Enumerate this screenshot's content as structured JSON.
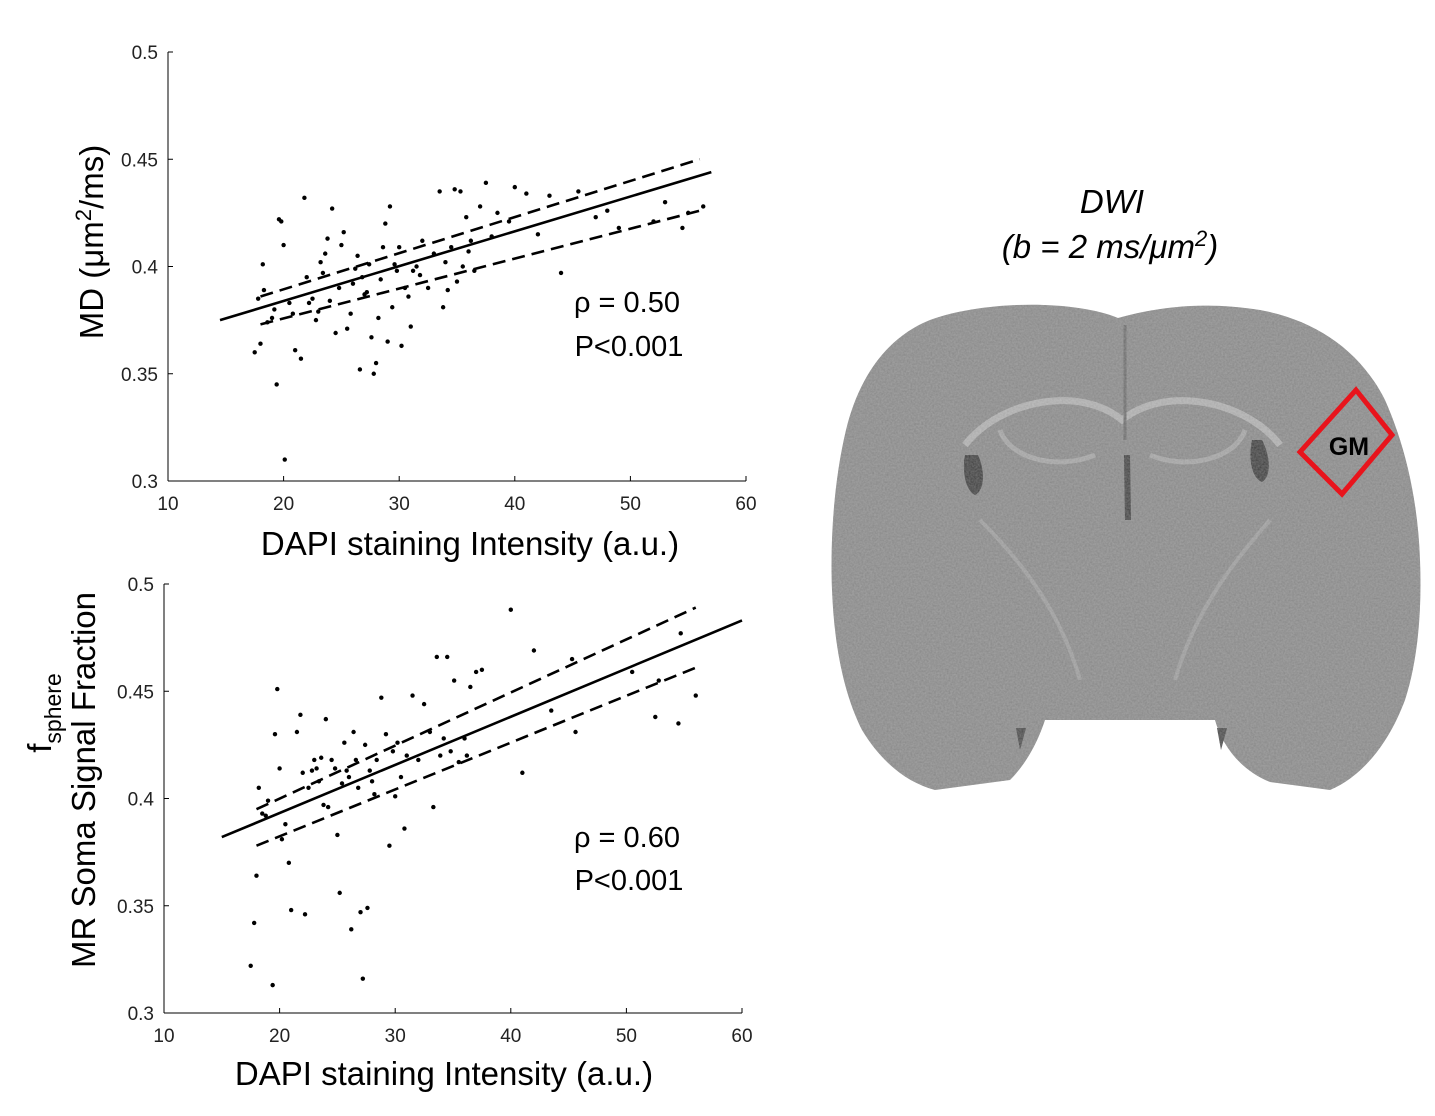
{
  "chart_data": [
    {
      "type": "scatter",
      "xlabel": "DAPI staining Intensity (a.u.)",
      "ylabel_main": "MD (μm",
      "ylabel_sup": "2",
      "ylabel_tail": "/ms)",
      "xlim": [
        10,
        60
      ],
      "ylim": [
        0.3,
        0.5
      ],
      "xticks": [
        10,
        20,
        30,
        40,
        50,
        60
      ],
      "xtick_labels": [
        "10",
        "20",
        "30",
        "40",
        "50",
        "60"
      ],
      "yticks": [
        0.3,
        0.35,
        0.4,
        0.45,
        0.5
      ],
      "ytick_labels": [
        "0.3",
        "0.35",
        "0.4",
        "0.45",
        "0.5"
      ],
      "annotation": [
        "ρ = 0.50",
        "P<0.001"
      ],
      "fit": {
        "x": [
          14.5,
          57
        ],
        "y": [
          0.375,
          0.444
        ]
      },
      "ci_upper": {
        "x": [
          18,
          56
        ],
        "y": [
          0.386,
          0.45
        ]
      },
      "ci_lower": {
        "x": [
          18,
          56
        ],
        "y": [
          0.373,
          0.426
        ]
      },
      "points": [
        [
          17.5,
          0.36
        ],
        [
          17.8,
          0.385
        ],
        [
          18,
          0.364
        ],
        [
          18.2,
          0.401
        ],
        [
          18.3,
          0.389
        ],
        [
          18.6,
          0.374
        ],
        [
          19,
          0.376
        ],
        [
          19.2,
          0.38
        ],
        [
          19.4,
          0.345
        ],
        [
          19.6,
          0.422
        ],
        [
          19.8,
          0.421
        ],
        [
          20,
          0.41
        ],
        [
          20.1,
          0.31
        ],
        [
          20.5,
          0.383
        ],
        [
          20.8,
          0.378
        ],
        [
          21,
          0.361
        ],
        [
          21.5,
          0.357
        ],
        [
          21.8,
          0.432
        ],
        [
          22,
          0.395
        ],
        [
          22.2,
          0.383
        ],
        [
          22.5,
          0.385
        ],
        [
          22.8,
          0.375
        ],
        [
          23,
          0.379
        ],
        [
          23.2,
          0.402
        ],
        [
          23.4,
          0.397
        ],
        [
          23.6,
          0.406
        ],
        [
          23.8,
          0.413
        ],
        [
          24,
          0.384
        ],
        [
          24.2,
          0.427
        ],
        [
          24.5,
          0.369
        ],
        [
          24.8,
          0.39
        ],
        [
          25,
          0.41
        ],
        [
          25.2,
          0.416
        ],
        [
          25.5,
          0.371
        ],
        [
          25.8,
          0.378
        ],
        [
          26,
          0.392
        ],
        [
          26.2,
          0.399
        ],
        [
          26.4,
          0.405
        ],
        [
          26.6,
          0.352
        ],
        [
          26.8,
          0.395
        ],
        [
          27,
          0.387
        ],
        [
          27.2,
          0.388
        ],
        [
          27.4,
          0.401
        ],
        [
          27.6,
          0.367
        ],
        [
          27.8,
          0.35
        ],
        [
          28,
          0.355
        ],
        [
          28.2,
          0.376
        ],
        [
          28.4,
          0.394
        ],
        [
          28.6,
          0.409
        ],
        [
          28.8,
          0.42
        ],
        [
          29,
          0.365
        ],
        [
          29.2,
          0.428
        ],
        [
          29.4,
          0.381
        ],
        [
          29.6,
          0.401
        ],
        [
          29.8,
          0.398
        ],
        [
          30,
          0.409
        ],
        [
          30.2,
          0.363
        ],
        [
          30.5,
          0.39
        ],
        [
          30.8,
          0.386
        ],
        [
          31,
          0.372
        ],
        [
          31.2,
          0.398
        ],
        [
          31.5,
          0.4
        ],
        [
          31.8,
          0.396
        ],
        [
          32,
          0.412
        ],
        [
          32.5,
          0.39
        ],
        [
          33,
          0.406
        ],
        [
          33.5,
          0.435
        ],
        [
          33.8,
          0.381
        ],
        [
          34,
          0.402
        ],
        [
          34.2,
          0.389
        ],
        [
          34.5,
          0.409
        ],
        [
          34.8,
          0.436
        ],
        [
          35,
          0.393
        ],
        [
          35.3,
          0.435
        ],
        [
          35.5,
          0.4
        ],
        [
          35.8,
          0.423
        ],
        [
          36,
          0.407
        ],
        [
          36.2,
          0.412
        ],
        [
          36.5,
          0.398
        ],
        [
          37,
          0.428
        ],
        [
          37.5,
          0.439
        ],
        [
          38,
          0.414
        ],
        [
          38.5,
          0.425
        ],
        [
          39.5,
          0.421
        ],
        [
          40,
          0.437
        ],
        [
          41,
          0.434
        ],
        [
          42,
          0.415
        ],
        [
          43,
          0.433
        ],
        [
          44,
          0.397
        ],
        [
          45.5,
          0.435
        ],
        [
          47,
          0.423
        ],
        [
          48,
          0.426
        ],
        [
          49,
          0.418
        ],
        [
          52,
          0.421
        ],
        [
          53,
          0.43
        ],
        [
          54.5,
          0.418
        ],
        [
          55,
          0.425
        ],
        [
          56.3,
          0.428
        ]
      ]
    },
    {
      "type": "scatter",
      "xlabel": "DAPI staining Intensity (a.u.)",
      "ylabel_f": "f",
      "ylabel_sub": "sphere",
      "ylabel_main": "MR Soma Signal Fraction",
      "xlim": [
        10,
        60
      ],
      "ylim": [
        0.3,
        0.5
      ],
      "xticks": [
        10,
        20,
        30,
        40,
        50,
        60
      ],
      "xtick_labels": [
        "10",
        "20",
        "30",
        "40",
        "50",
        "60"
      ],
      "yticks": [
        0.3,
        0.35,
        0.4,
        0.45,
        0.5
      ],
      "ytick_labels": [
        "0.3",
        "0.35",
        "0.4",
        "0.45",
        "0.5"
      ],
      "annotation": [
        "ρ = 0.60",
        "P<0.001"
      ],
      "fit": {
        "x": [
          15,
          60
        ],
        "y": [
          0.382,
          0.483
        ]
      },
      "ci_upper": {
        "x": [
          18,
          56
        ],
        "y": [
          0.395,
          0.489
        ]
      },
      "ci_lower": {
        "x": [
          18,
          56
        ],
        "y": [
          0.378,
          0.461
        ]
      },
      "points": [
        [
          17.5,
          0.322
        ],
        [
          17.8,
          0.342
        ],
        [
          18,
          0.364
        ],
        [
          18.2,
          0.405
        ],
        [
          18.5,
          0.393
        ],
        [
          18.8,
          0.392
        ],
        [
          19,
          0.399
        ],
        [
          19.4,
          0.313
        ],
        [
          19.6,
          0.43
        ],
        [
          19.8,
          0.451
        ],
        [
          20,
          0.414
        ],
        [
          20.2,
          0.381
        ],
        [
          20.5,
          0.388
        ],
        [
          20.8,
          0.37
        ],
        [
          21,
          0.348
        ],
        [
          21.5,
          0.431
        ],
        [
          21.8,
          0.439
        ],
        [
          22,
          0.412
        ],
        [
          22.2,
          0.346
        ],
        [
          22.5,
          0.405
        ],
        [
          22.8,
          0.413
        ],
        [
          23,
          0.418
        ],
        [
          23.2,
          0.414
        ],
        [
          23.4,
          0.408
        ],
        [
          23.6,
          0.419
        ],
        [
          23.8,
          0.397
        ],
        [
          24,
          0.437
        ],
        [
          24.2,
          0.396
        ],
        [
          24.5,
          0.418
        ],
        [
          24.8,
          0.414
        ],
        [
          25,
          0.383
        ],
        [
          25.2,
          0.356
        ],
        [
          25.4,
          0.407
        ],
        [
          25.6,
          0.426
        ],
        [
          25.8,
          0.413
        ],
        [
          26,
          0.41
        ],
        [
          26.2,
          0.339
        ],
        [
          26.4,
          0.431
        ],
        [
          26.6,
          0.418
        ],
        [
          26.8,
          0.405
        ],
        [
          27,
          0.347
        ],
        [
          27.2,
          0.316
        ],
        [
          27.4,
          0.425
        ],
        [
          27.6,
          0.349
        ],
        [
          27.8,
          0.413
        ],
        [
          28,
          0.408
        ],
        [
          28.2,
          0.402
        ],
        [
          28.4,
          0.418
        ],
        [
          28.8,
          0.447
        ],
        [
          29.2,
          0.43
        ],
        [
          29.5,
          0.378
        ],
        [
          29.8,
          0.422
        ],
        [
          30,
          0.401
        ],
        [
          30.2,
          0.426
        ],
        [
          30.5,
          0.41
        ],
        [
          30.8,
          0.386
        ],
        [
          31,
          0.42
        ],
        [
          31.5,
          0.448
        ],
        [
          32,
          0.418
        ],
        [
          32.5,
          0.444
        ],
        [
          33,
          0.431
        ],
        [
          33.3,
          0.396
        ],
        [
          33.6,
          0.466
        ],
        [
          33.9,
          0.42
        ],
        [
          34.2,
          0.428
        ],
        [
          34.5,
          0.466
        ],
        [
          34.8,
          0.422
        ],
        [
          35.1,
          0.455
        ],
        [
          35.5,
          0.417
        ],
        [
          36,
          0.428
        ],
        [
          36.2,
          0.42
        ],
        [
          36.5,
          0.452
        ],
        [
          37,
          0.459
        ],
        [
          37.5,
          0.46
        ],
        [
          40,
          0.488
        ],
        [
          41,
          0.412
        ],
        [
          42,
          0.469
        ],
        [
          43.5,
          0.441
        ],
        [
          45.3,
          0.465
        ],
        [
          45.6,
          0.431
        ],
        [
          50.5,
          0.459
        ],
        [
          52.5,
          0.438
        ],
        [
          52.8,
          0.455
        ],
        [
          54.5,
          0.435
        ],
        [
          54.7,
          0.477
        ],
        [
          56,
          0.448
        ]
      ]
    }
  ],
  "image_panel": {
    "title": "DWI",
    "subtitle_main": "(b = 2 ms/μm",
    "subtitle_sup": "2",
    "subtitle_tail": ")",
    "roi_label": "GM",
    "roi_color": "#e8141c"
  }
}
